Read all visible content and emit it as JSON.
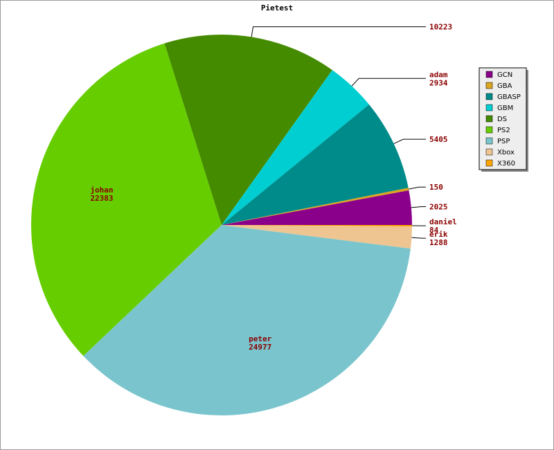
{
  "chart_data": {
    "type": "pie",
    "title": "Pietest",
    "categories": [
      "GCN",
      "GBA",
      "GBASP",
      "GBM",
      "DS",
      "PS2",
      "PSP",
      "Xbox",
      "X360"
    ],
    "values": [
      2025,
      150,
      5405,
      2934,
      10223,
      22383,
      24977,
      1288,
      84
    ],
    "slice_names": [
      null,
      null,
      null,
      "adam",
      null,
      "johan",
      "peter",
      "erik",
      "daniel"
    ],
    "colors": [
      "#8b008b",
      "#daa520",
      "#008b8b",
      "#00ced1",
      "#458b00",
      "#66cd00",
      "#7ac5cd",
      "#eec591",
      "#ffa500"
    ]
  }
}
